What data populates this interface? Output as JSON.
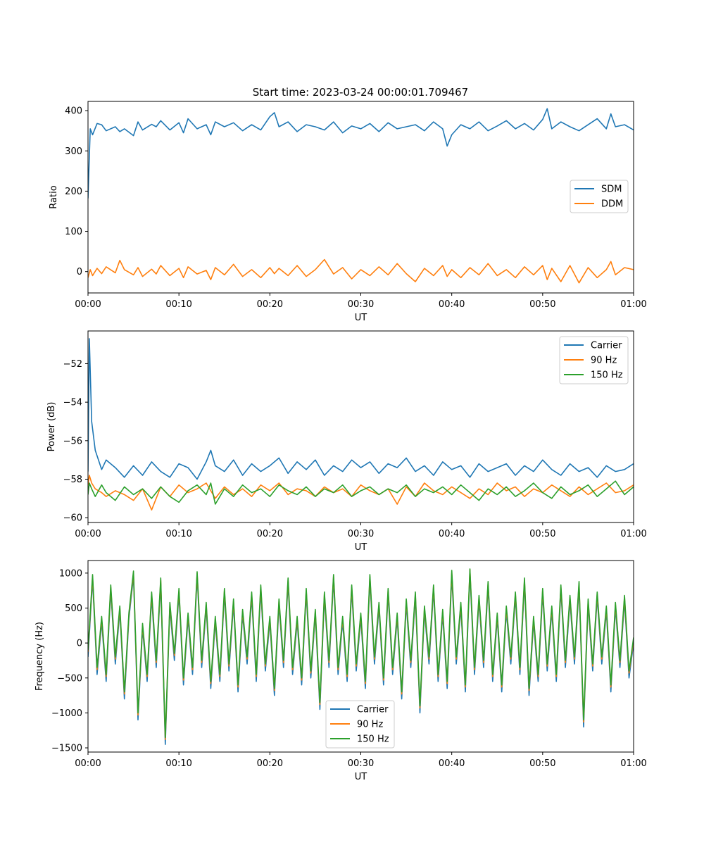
{
  "figure_title": "Start time: 2023-03-24 00:00:01.709467",
  "colors": {
    "c0": "#1f77b4",
    "c1": "#ff7f0e",
    "c2": "#2ca02c"
  },
  "chart_data": [
    {
      "type": "line",
      "title": "Start time: 2023-03-24 00:00:01.709467",
      "xlabel": "UT",
      "ylabel": "Ratio",
      "xlim": [
        0,
        60
      ],
      "ylim": [
        -53,
        423
      ],
      "xticks": [
        0,
        10,
        20,
        30,
        40,
        50,
        60
      ],
      "xtick_labels": [
        "00:00",
        "00:10",
        "00:20",
        "00:30",
        "00:40",
        "00:50",
        "01:00"
      ],
      "yticks": [
        0,
        100,
        200,
        300,
        400
      ],
      "ytick_labels": [
        "0",
        "100",
        "200",
        "300",
        "400"
      ],
      "legend": "center-right",
      "grid": false,
      "x": [
        0,
        0.25,
        0.5,
        1,
        1.5,
        2,
        3,
        3.5,
        4,
        5,
        5.5,
        6,
        7,
        7.5,
        8,
        9,
        10,
        10.5,
        11,
        12,
        13,
        13.5,
        14,
        15,
        16,
        17,
        18,
        19,
        20,
        20.5,
        21,
        22,
        23,
        24,
        25,
        26,
        27,
        28,
        29,
        30,
        31,
        32,
        33,
        34,
        35,
        36,
        37,
        38,
        39,
        39.5,
        40,
        41,
        42,
        43,
        44,
        45,
        46,
        47,
        48,
        49,
        50,
        50.5,
        51,
        52,
        53,
        54,
        55,
        56,
        57,
        57.5,
        58,
        59,
        60
      ],
      "series": [
        {
          "name": "SDM",
          "color": "#1f77b4",
          "values": [
            182,
            355,
            340,
            368,
            365,
            350,
            360,
            348,
            355,
            338,
            372,
            352,
            366,
            360,
            375,
            352,
            370,
            345,
            380,
            355,
            365,
            340,
            372,
            360,
            370,
            350,
            365,
            352,
            385,
            395,
            360,
            372,
            348,
            365,
            360,
            352,
            372,
            345,
            362,
            355,
            368,
            348,
            370,
            355,
            360,
            365,
            350,
            372,
            355,
            312,
            340,
            365,
            355,
            372,
            350,
            362,
            375,
            355,
            368,
            352,
            378,
            405,
            355,
            372,
            360,
            350,
            365,
            380,
            355,
            392,
            360,
            365,
            352
          ]
        },
        {
          "name": "DDM",
          "color": "#ff7f0e",
          "values": [
            -15,
            5,
            -10,
            8,
            -5,
            12,
            -3,
            28,
            5,
            -8,
            10,
            -12,
            6,
            -6,
            15,
            -10,
            8,
            -15,
            12,
            -6,
            3,
            -20,
            10,
            -8,
            18,
            -12,
            5,
            -15,
            10,
            -5,
            8,
            -10,
            15,
            -12,
            5,
            30,
            -6,
            10,
            -18,
            5,
            -10,
            12,
            -8,
            20,
            -5,
            -25,
            8,
            -10,
            15,
            -12,
            5,
            -15,
            10,
            -8,
            20,
            -10,
            5,
            -15,
            12,
            -8,
            15,
            -20,
            8,
            -25,
            15,
            -28,
            10,
            -15,
            5,
            25,
            -8,
            10,
            5
          ]
        }
      ]
    },
    {
      "type": "line",
      "title": "",
      "xlabel": "UT",
      "ylabel": "Power (dB)",
      "xlim": [
        0,
        60
      ],
      "ylim": [
        -60.25,
        -50.3
      ],
      "xticks": [
        0,
        10,
        20,
        30,
        40,
        50,
        60
      ],
      "xtick_labels": [
        "00:00",
        "00:10",
        "00:20",
        "00:30",
        "00:40",
        "00:50",
        "01:00"
      ],
      "yticks": [
        -60,
        -58,
        -56,
        -54,
        -52
      ],
      "ytick_labels": [
        "−60",
        "−58",
        "−56",
        "−54",
        "−52"
      ],
      "legend": "top-right",
      "grid": false,
      "x": [
        0,
        0.15,
        0.4,
        0.8,
        1.5,
        2,
        3,
        4,
        5,
        6,
        7,
        8,
        9,
        10,
        11,
        12,
        13,
        13.5,
        14,
        15,
        16,
        17,
        18,
        19,
        20,
        21,
        22,
        23,
        24,
        25,
        26,
        27,
        28,
        29,
        30,
        31,
        32,
        33,
        34,
        35,
        36,
        37,
        38,
        39,
        40,
        41,
        42,
        43,
        44,
        45,
        46,
        47,
        48,
        49,
        50,
        51,
        52,
        53,
        54,
        55,
        56,
        57,
        58,
        59,
        60
      ],
      "series": [
        {
          "name": "Carrier",
          "color": "#1f77b4",
          "values": [
            -57.6,
            -50.7,
            -55.0,
            -56.5,
            -57.5,
            -57.0,
            -57.4,
            -57.9,
            -57.3,
            -57.8,
            -57.1,
            -57.6,
            -57.9,
            -57.2,
            -57.4,
            -58.0,
            -57.1,
            -56.5,
            -57.3,
            -57.6,
            -57.0,
            -57.8,
            -57.2,
            -57.6,
            -57.3,
            -56.9,
            -57.7,
            -57.1,
            -57.5,
            -57.0,
            -57.8,
            -57.3,
            -57.6,
            -57.0,
            -57.4,
            -57.1,
            -57.7,
            -57.2,
            -57.4,
            -56.9,
            -57.6,
            -57.3,
            -57.8,
            -57.1,
            -57.5,
            -57.3,
            -57.9,
            -57.2,
            -57.6,
            -57.4,
            -57.2,
            -57.8,
            -57.3,
            -57.6,
            -57.0,
            -57.5,
            -57.8,
            -57.2,
            -57.6,
            -57.4,
            -57.9,
            -57.3,
            -57.6,
            -57.5,
            -57.2
          ]
        },
        {
          "name": "90 Hz",
          "color": "#ff7f0e",
          "values": [
            -58.3,
            -57.8,
            -58.2,
            -58.5,
            -58.7,
            -58.9,
            -58.6,
            -58.8,
            -59.1,
            -58.5,
            -59.6,
            -58.4,
            -58.9,
            -58.3,
            -58.7,
            -58.5,
            -58.2,
            -58.6,
            -59.0,
            -58.4,
            -58.8,
            -58.5,
            -58.9,
            -58.3,
            -58.6,
            -58.2,
            -58.8,
            -58.5,
            -58.6,
            -58.9,
            -58.4,
            -58.7,
            -58.5,
            -58.9,
            -58.3,
            -58.6,
            -58.8,
            -58.5,
            -59.3,
            -58.4,
            -58.9,
            -58.2,
            -58.6,
            -58.8,
            -58.4,
            -58.7,
            -59.0,
            -58.5,
            -58.8,
            -58.2,
            -58.6,
            -58.4,
            -58.9,
            -58.5,
            -58.7,
            -58.3,
            -58.6,
            -58.9,
            -58.4,
            -58.8,
            -58.5,
            -58.2,
            -58.7,
            -58.6,
            -58.3
          ]
        },
        {
          "name": "150 Hz",
          "color": "#2ca02c",
          "values": [
            -58.8,
            -58.2,
            -58.5,
            -58.9,
            -58.3,
            -58.7,
            -59.1,
            -58.4,
            -58.8,
            -58.5,
            -59.0,
            -58.4,
            -58.9,
            -59.2,
            -58.6,
            -58.3,
            -58.8,
            -58.2,
            -59.3,
            -58.5,
            -58.9,
            -58.3,
            -58.7,
            -58.5,
            -58.9,
            -58.3,
            -58.6,
            -58.8,
            -58.4,
            -58.9,
            -58.5,
            -58.7,
            -58.3,
            -58.9,
            -58.6,
            -58.4,
            -58.8,
            -58.5,
            -58.7,
            -58.3,
            -58.9,
            -58.5,
            -58.7,
            -58.4,
            -58.8,
            -58.3,
            -58.7,
            -59.1,
            -58.5,
            -58.8,
            -58.4,
            -58.9,
            -58.6,
            -58.2,
            -58.7,
            -59.0,
            -58.4,
            -58.8,
            -58.6,
            -58.3,
            -58.9,
            -58.5,
            -58.1,
            -58.8,
            -58.4
          ]
        }
      ]
    },
    {
      "type": "line",
      "title": "",
      "xlabel": "UT",
      "ylabel": "Frequency (Hz)",
      "xlim": [
        0,
        60
      ],
      "ylim": [
        -1560,
        1180
      ],
      "xticks": [
        0,
        10,
        20,
        30,
        40,
        50,
        60
      ],
      "xtick_labels": [
        "00:00",
        "00:10",
        "00:20",
        "00:30",
        "00:40",
        "00:50",
        "01:00"
      ],
      "yticks": [
        -1500,
        -1000,
        -500,
        0,
        500,
        1000
      ],
      "ytick_labels": [
        "−1500",
        "−1000",
        "−500",
        "0",
        "500",
        "1000"
      ],
      "legend": "bottom-center",
      "grid": false,
      "x": [
        0,
        0.5,
        1,
        1.5,
        2,
        2.5,
        3,
        3.5,
        4,
        4.5,
        5,
        5.5,
        6,
        6.5,
        7,
        7.5,
        8,
        8.5,
        9,
        9.5,
        10,
        10.5,
        11,
        11.5,
        12,
        12.5,
        13,
        13.5,
        14,
        14.5,
        15,
        15.5,
        16,
        16.5,
        17,
        17.5,
        18,
        18.5,
        19,
        19.5,
        20,
        20.5,
        21,
        21.5,
        22,
        22.5,
        23,
        23.5,
        24,
        24.5,
        25,
        25.5,
        26,
        26.5,
        27,
        27.5,
        28,
        28.5,
        29,
        29.5,
        30,
        30.5,
        31,
        31.5,
        32,
        32.5,
        33,
        33.5,
        34,
        34.5,
        35,
        35.5,
        36,
        36.5,
        37,
        37.5,
        38,
        38.5,
        39,
        39.5,
        40,
        40.5,
        41,
        41.5,
        42,
        42.5,
        43,
        43.5,
        44,
        44.5,
        45,
        45.5,
        46,
        46.5,
        47,
        47.5,
        48,
        48.5,
        49,
        49.5,
        50,
        50.5,
        51,
        51.5,
        52,
        52.5,
        53,
        53.5,
        54,
        54.5,
        55,
        55.5,
        56,
        56.5,
        57,
        57.5,
        58,
        58.5,
        59,
        59.5,
        60
      ],
      "series": [
        {
          "name": "Carrier",
          "color": "#1f77b4",
          "values": [
            -200,
            900,
            -450,
            300,
            -550,
            750,
            -300,
            450,
            -800,
            350,
            950,
            -1100,
            200,
            -550,
            650,
            -350,
            850,
            -1450,
            500,
            -250,
            700,
            -600,
            350,
            -450,
            950,
            -350,
            500,
            -650,
            300,
            -550,
            700,
            -400,
            550,
            -700,
            400,
            -300,
            650,
            -550,
            750,
            -400,
            300,
            -750,
            550,
            -350,
            850,
            -450,
            300,
            -600,
            700,
            -500,
            400,
            -950,
            650,
            -350,
            900,
            -450,
            300,
            -550,
            750,
            -400,
            350,
            -650,
            900,
            -300,
            500,
            -600,
            700,
            -450,
            350,
            -800,
            550,
            -350,
            650,
            -1000,
            450,
            -300,
            750,
            -550,
            400,
            -650,
            950,
            -300,
            500,
            -700,
            1000,
            -450,
            600,
            -350,
            800,
            -550,
            350,
            -700,
            450,
            -300,
            650,
            -450,
            850,
            -750,
            300,
            -550,
            700,
            -400,
            450,
            -550,
            750,
            -350,
            600,
            -300,
            800,
            -1200,
            550,
            -400,
            650,
            -300,
            450,
            -700,
            500,
            -350,
            600,
            -500,
            0
          ]
        },
        {
          "name": "90 Hz",
          "color": "#ff7f0e",
          "values": [
            -130,
            950,
            -380,
            350,
            -480,
            800,
            -230,
            500,
            -730,
            400,
            1000,
            -1030,
            250,
            -480,
            700,
            -280,
            900,
            -1380,
            550,
            -180,
            750,
            -530,
            400,
            -380,
            1000,
            -280,
            550,
            -580,
            350,
            -480,
            750,
            -330,
            600,
            -630,
            450,
            -230,
            700,
            -480,
            800,
            -330,
            350,
            -680,
            600,
            -280,
            900,
            -380,
            350,
            -530,
            750,
            -430,
            450,
            -880,
            700,
            -280,
            950,
            -380,
            350,
            -480,
            800,
            -330,
            400,
            -580,
            950,
            -230,
            550,
            -530,
            750,
            -380,
            400,
            -730,
            600,
            -280,
            700,
            -930,
            500,
            -230,
            800,
            -480,
            450,
            -580,
            1000,
            -230,
            550,
            -630,
            1050,
            -380,
            650,
            -280,
            850,
            -480,
            400,
            -630,
            500,
            -230,
            700,
            -380,
            900,
            -680,
            350,
            -480,
            750,
            -330,
            500,
            -480,
            800,
            -280,
            650,
            -230,
            850,
            -1130,
            600,
            -330,
            700,
            -230,
            500,
            -630,
            550,
            -280,
            650,
            -430,
            50
          ]
        },
        {
          "name": "150 Hz",
          "color": "#2ca02c",
          "values": [
            -100,
            980,
            -350,
            380,
            -450,
            830,
            -200,
            530,
            -700,
            430,
            1030,
            -1000,
            280,
            -450,
            730,
            -250,
            930,
            -1350,
            580,
            -150,
            780,
            -500,
            430,
            -350,
            1020,
            -250,
            580,
            -550,
            380,
            -450,
            780,
            -300,
            630,
            -600,
            480,
            -200,
            730,
            -450,
            830,
            -300,
            380,
            -650,
            630,
            -250,
            930,
            -350,
            380,
            -500,
            780,
            -400,
            480,
            -850,
            730,
            -250,
            980,
            -350,
            380,
            -450,
            830,
            -300,
            430,
            -550,
            980,
            -200,
            580,
            -500,
            780,
            -350,
            430,
            -700,
            630,
            -250,
            730,
            -900,
            530,
            -200,
            830,
            -450,
            480,
            -550,
            1040,
            -200,
            580,
            -600,
            1060,
            -350,
            680,
            -250,
            880,
            -450,
            430,
            -600,
            530,
            -200,
            730,
            -350,
            930,
            -650,
            380,
            -450,
            780,
            -300,
            530,
            -450,
            830,
            -250,
            680,
            -200,
            880,
            -1100,
            630,
            -300,
            730,
            -200,
            530,
            -600,
            580,
            -250,
            680,
            -400,
            80
          ]
        }
      ]
    }
  ]
}
